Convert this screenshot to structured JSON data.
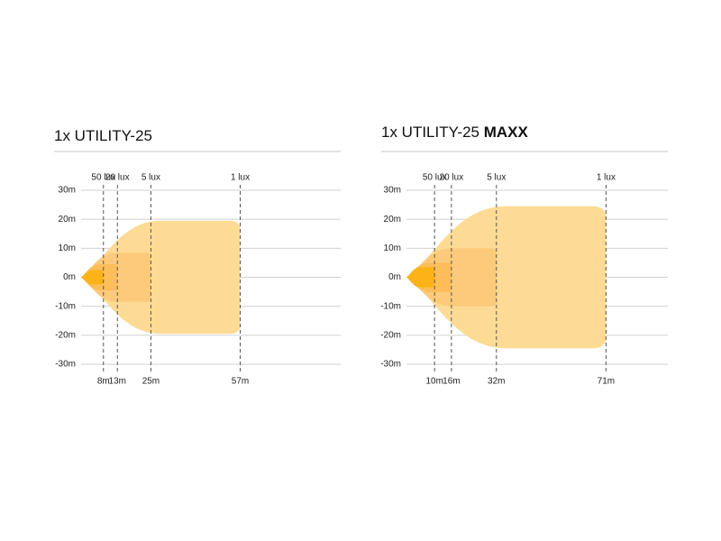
{
  "chart_data": [
    {
      "type": "beam",
      "title": "1x UTILITY-25",
      "xlim": [
        0,
        93
      ],
      "ylim": [
        -30,
        30
      ],
      "yticks": [
        {
          "value": 30,
          "label": "30m"
        },
        {
          "value": 20,
          "label": "20m"
        },
        {
          "value": 10,
          "label": "10m"
        },
        {
          "value": 0,
          "label": "0m"
        },
        {
          "value": -10,
          "label": "-10m"
        },
        {
          "value": -20,
          "label": "-20m"
        },
        {
          "value": -30,
          "label": "-30m"
        }
      ],
      "zones": [
        {
          "name": "1 lux",
          "distance": 57,
          "distance_label": "57m",
          "width": 19.5,
          "color": "#fddb95"
        },
        {
          "name": "5 lux",
          "distance": 25,
          "distance_label": "25m",
          "width": 8.5,
          "color": "#fcca7a"
        },
        {
          "name": "20 lux",
          "distance": 13,
          "distance_label": "13m",
          "width": 4.5,
          "color": "#fcbd5a"
        },
        {
          "name": "50 lux",
          "distance": 8,
          "distance_label": "8m",
          "width": 2.5,
          "color": "#fbb318"
        }
      ]
    },
    {
      "type": "beam",
      "title": "1x UTILITY-25",
      "title_suffix": "MAXX",
      "xlim": [
        0,
        93
      ],
      "ylim": [
        -30,
        30
      ],
      "yticks": [
        {
          "value": 30,
          "label": "30m"
        },
        {
          "value": 20,
          "label": "20m"
        },
        {
          "value": 10,
          "label": "10m"
        },
        {
          "value": 0,
          "label": "0m"
        },
        {
          "value": -10,
          "label": "-10m"
        },
        {
          "value": -20,
          "label": "-20m"
        },
        {
          "value": -30,
          "label": "-30m"
        }
      ],
      "zones": [
        {
          "name": "1 lux",
          "distance": 71,
          "distance_label": "71m",
          "width": 24.5,
          "color": "#fddb95"
        },
        {
          "name": "5 lux",
          "distance": 32,
          "distance_label": "32m",
          "width": 10,
          "color": "#fcca7a"
        },
        {
          "name": "20 lux",
          "distance": 16,
          "distance_label": "16m",
          "width": 5,
          "color": "#fcbd5a"
        },
        {
          "name": "50 lux",
          "distance": 10,
          "distance_label": "10m",
          "width": 3.5,
          "color": "#fbb318"
        }
      ]
    }
  ]
}
